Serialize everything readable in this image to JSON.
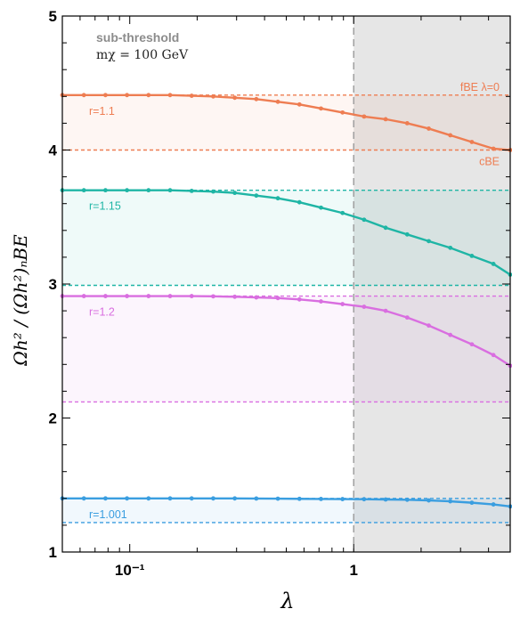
{
  "chart_data": {
    "type": "line",
    "xscale": "log",
    "xlim": [
      0.05,
      5
    ],
    "ylim": [
      1,
      5
    ],
    "xlabel": "λ",
    "ylabel": "Ωh² / (Ωh²)ₙBE",
    "x_tick_labels": [
      {
        "value": 0.1,
        "label": "10⁻¹"
      },
      {
        "value": 1,
        "label": "1"
      }
    ],
    "y_tick_labels": [
      {
        "value": 1,
        "label": "1"
      },
      {
        "value": 2,
        "label": "2"
      },
      {
        "value": 3,
        "label": "3"
      },
      {
        "value": 4,
        "label": "4"
      },
      {
        "value": 5,
        "label": "5"
      }
    ],
    "annotation": {
      "title": "sub-threshold",
      "subtitle": "mχ = 100 GeV"
    },
    "shaded_region": {
      "x_from": 1,
      "x_to": 5,
      "color": "#e6e6e6"
    },
    "vertical_line": {
      "x": 1,
      "color": "#9a9a9a"
    },
    "reference_labels": [
      {
        "text": "fBE λ=0",
        "series": "r=1.1",
        "ref": "fBE",
        "color": "#ee7d52"
      },
      {
        "text": "cBE",
        "series": "r=1.1",
        "ref": "cBE",
        "color": "#ee7d52"
      }
    ],
    "x": [
      0.05,
      0.0624,
      0.0779,
      0.0972,
      0.1213,
      0.1514,
      0.189,
      0.2359,
      0.2944,
      0.3674,
      0.4586,
      0.5724,
      0.7144,
      0.8916,
      1.1128,
      1.3889,
      1.7335,
      2.1636,
      2.7004,
      3.3703,
      4.2065,
      5.0
    ],
    "series": [
      {
        "name": "r=1.1",
        "color": "#ee7d52",
        "fBE": 4.41,
        "cBE": 4.0,
        "values": [
          4.41,
          4.41,
          4.41,
          4.41,
          4.41,
          4.41,
          4.405,
          4.4,
          4.39,
          4.38,
          4.36,
          4.34,
          4.31,
          4.28,
          4.25,
          4.23,
          4.2,
          4.16,
          4.11,
          4.06,
          4.01,
          4.0
        ]
      },
      {
        "name": "r=1.15",
        "color": "#1fb5a5",
        "fBE": 3.7,
        "cBE": 2.99,
        "values": [
          3.7,
          3.7,
          3.7,
          3.7,
          3.7,
          3.7,
          3.695,
          3.69,
          3.68,
          3.66,
          3.64,
          3.61,
          3.57,
          3.53,
          3.48,
          3.42,
          3.37,
          3.32,
          3.27,
          3.21,
          3.15,
          3.07
        ]
      },
      {
        "name": "r=1.2",
        "color": "#d96ee0",
        "fBE": 2.91,
        "cBE": 2.12,
        "values": [
          2.91,
          2.91,
          2.91,
          2.91,
          2.91,
          2.91,
          2.91,
          2.908,
          2.905,
          2.9,
          2.895,
          2.885,
          2.87,
          2.85,
          2.83,
          2.8,
          2.75,
          2.69,
          2.62,
          2.55,
          2.47,
          2.39
        ]
      },
      {
        "name": "r=1.001",
        "color": "#3a9ee0",
        "fBE": 1.4,
        "cBE": 1.22,
        "values": [
          1.4,
          1.4,
          1.4,
          1.4,
          1.4,
          1.4,
          1.4,
          1.4,
          1.4,
          1.399,
          1.398,
          1.397,
          1.396,
          1.395,
          1.394,
          1.392,
          1.39,
          1.385,
          1.378,
          1.368,
          1.355,
          1.34
        ]
      }
    ]
  }
}
